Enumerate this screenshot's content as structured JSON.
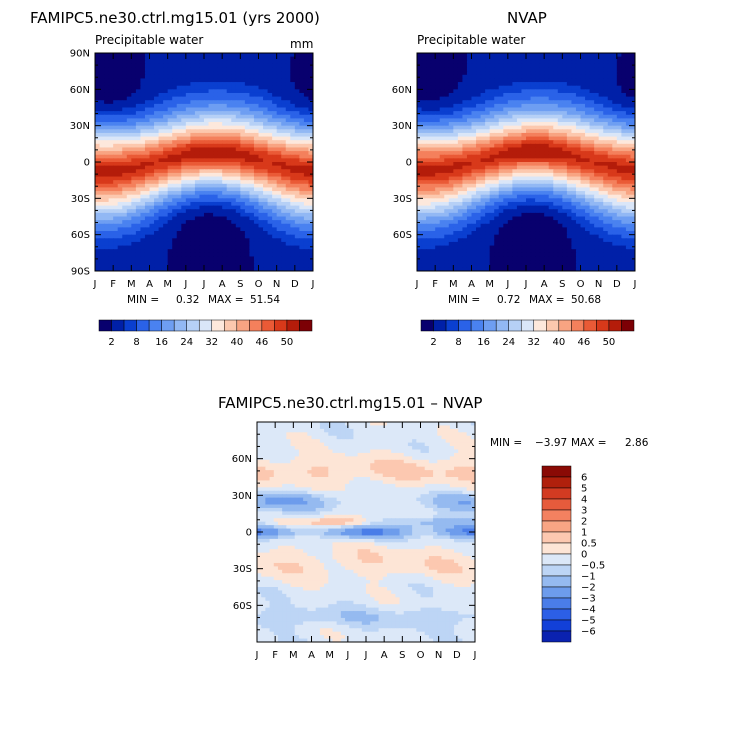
{
  "panels": {
    "top_left": {
      "title": "FAMIPC5.ne30.ctrl.mg15.01 (yrs 2000)",
      "subtitle": "Precipitable water",
      "units": "mm",
      "min_label": "MIN =",
      "min_value": "0.32",
      "max_label": "MAX =",
      "max_value": "51.54"
    },
    "top_right": {
      "title": "NVAP",
      "subtitle": "Precipitable water",
      "min_label": "MIN =",
      "min_value": "0.72",
      "max_label": "MAX =",
      "max_value": "50.68"
    },
    "bottom": {
      "title": "FAMIPC5.ne30.ctrl.mg15.01 – NVAP",
      "min_label": "MIN =",
      "min_value": "−3.97",
      "max_label": "MAX =",
      "max_value": "2.86"
    }
  },
  "colors": {
    "abs_scale": [
      "#08006e",
      "#0020a8",
      "#0a3fd0",
      "#2a62e8",
      "#4a82f0",
      "#6e9ef2",
      "#92b8f4",
      "#b6d0f6",
      "#dae6f8",
      "#fde8dc",
      "#fcc8ae",
      "#f8a482",
      "#f4805c",
      "#ea5a36",
      "#d8391a",
      "#b41c0a",
      "#7c0005"
    ],
    "diff_scale": [
      "#0a0a82",
      "#0a22b0",
      "#1240d8",
      "#2c5fe6",
      "#4a7de8",
      "#6d9cec",
      "#95baf0",
      "#bdd5f5",
      "#dce8f8",
      "#fde5d6",
      "#fcc8b0",
      "#f8a584",
      "#f38160",
      "#e65b3c",
      "#d23b22",
      "#b0200c",
      "#8a0a05"
    ]
  },
  "chart_data": [
    {
      "type": "heatmap",
      "name_ref": "top_left",
      "x_ticks": [
        "J",
        "F",
        "M",
        "A",
        "M",
        "J",
        "J",
        "A",
        "S",
        "O",
        "N",
        "D",
        "J"
      ],
      "y_ticks": [
        "90N",
        "60N",
        "30N",
        "0",
        "30S",
        "60S",
        "90S"
      ],
      "ylim": [
        -90,
        90
      ],
      "colorbar_levels": [
        2,
        5,
        8,
        12,
        16,
        20,
        24,
        28,
        32,
        36,
        40,
        43,
        46,
        48,
        50
      ],
      "colorbar_labels": [
        "2",
        "8",
        "16",
        "24",
        "32",
        "40",
        "46",
        "50"
      ],
      "z_min": 0.32,
      "z_max": 51.54
    },
    {
      "type": "heatmap",
      "name_ref": "top_right",
      "x_ticks": [
        "J",
        "F",
        "M",
        "A",
        "M",
        "J",
        "J",
        "A",
        "S",
        "O",
        "N",
        "D",
        "J"
      ],
      "y_ticks": [
        "60N",
        "30N",
        "0",
        "30S",
        "60S"
      ],
      "ylim": [
        -90,
        90
      ],
      "colorbar_levels": [
        2,
        5,
        8,
        12,
        16,
        20,
        24,
        28,
        32,
        36,
        40,
        43,
        46,
        48,
        50
      ],
      "colorbar_labels": [
        "2",
        "8",
        "16",
        "24",
        "32",
        "40",
        "46",
        "50"
      ],
      "z_min": 0.72,
      "z_max": 50.68
    },
    {
      "type": "heatmap",
      "name_ref": "bottom",
      "x_ticks": [
        "J",
        "F",
        "M",
        "A",
        "M",
        "J",
        "J",
        "A",
        "S",
        "O",
        "N",
        "D",
        "J"
      ],
      "y_ticks": [
        "60N",
        "30N",
        "0",
        "30S",
        "60S"
      ],
      "ylim": [
        -90,
        90
      ],
      "colorbar_labels": [
        "6",
        "5",
        "4",
        "3",
        "2",
        "1",
        "0.5",
        "0",
        "−0.5",
        "−1",
        "−2",
        "−3",
        "−4",
        "−5",
        "−6"
      ],
      "z_min": -3.97,
      "z_max": 2.86
    }
  ]
}
